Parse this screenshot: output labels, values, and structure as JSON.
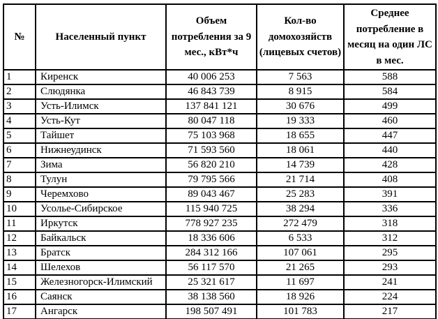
{
  "colors": {
    "border": "#000000",
    "text": "#000000",
    "background": "#ffffff"
  },
  "table": {
    "columns": [
      {
        "label": "№"
      },
      {
        "label": "Населенный пункт"
      },
      {
        "label": "Объем потребления за 9 мес., кВт*ч"
      },
      {
        "label": "Кол-во домохозяйств (лицевых счетов)"
      },
      {
        "label": "Среднее потребление в месяц на один ЛС в мес."
      }
    ],
    "rows": [
      [
        "1",
        "Киренск",
        "40 006 253",
        "7 563",
        "588"
      ],
      [
        "2",
        "Слюдянка",
        "46 843 739",
        "8 915",
        "584"
      ],
      [
        "3",
        "Усть-Илимск",
        "137 841 121",
        "30 676",
        "499"
      ],
      [
        "4",
        "Усть-Кут",
        "80 047 118",
        "19 333",
        "460"
      ],
      [
        "5",
        "Тайшет",
        "75 103 968",
        "18 655",
        "447"
      ],
      [
        "6",
        "Нижнеудинск",
        "71 593 560",
        "18 061",
        "440"
      ],
      [
        "7",
        "Зима",
        "56 820 210",
        "14 739",
        "428"
      ],
      [
        "8",
        "Тулун",
        "79 795 566",
        "21 714",
        "408"
      ],
      [
        "9",
        "Черемхово",
        "89 043 467",
        "25 283",
        "391"
      ],
      [
        "10",
        "Усолье-Сибирское",
        "115 940 725",
        "38 294",
        "336"
      ],
      [
        "11",
        "Иркутск",
        "778 927 235",
        "272 479",
        "318"
      ],
      [
        "12",
        "Байкальск",
        "18 336 606",
        "6 533",
        "312"
      ],
      [
        "13",
        "Братск",
        "284 312 166",
        "107 061",
        "295"
      ],
      [
        "14",
        "Шелехов",
        "56 117 570",
        "21 265",
        "293"
      ],
      [
        "15",
        "Железногорск-Илимский",
        "25 321 617",
        "11 697",
        "241"
      ],
      [
        "16",
        "Саянск",
        "38 138 560",
        "18 926",
        "224"
      ],
      [
        "17",
        "Ангарск",
        "198 507 491",
        "101 783",
        "217"
      ]
    ]
  }
}
